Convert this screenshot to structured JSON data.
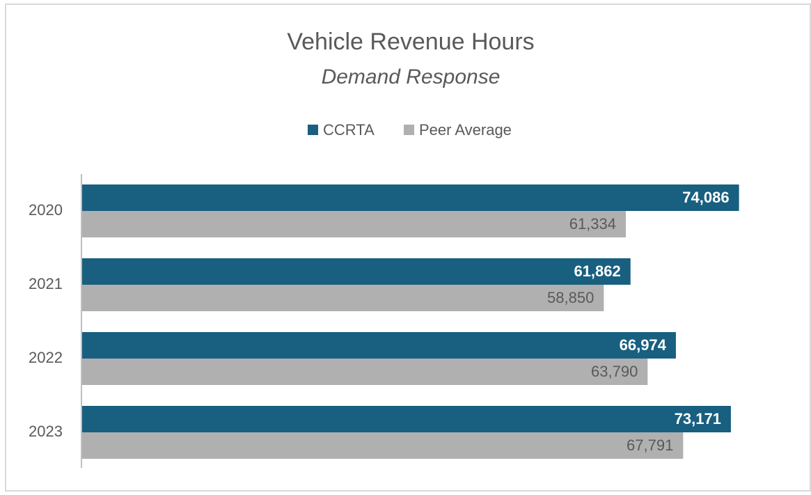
{
  "chart_data": {
    "type": "bar",
    "orientation": "horizontal",
    "title": "Vehicle Revenue Hours",
    "subtitle": "Demand Response",
    "categories": [
      "2020",
      "2021",
      "2022",
      "2023"
    ],
    "series": [
      {
        "name": "CCRTA",
        "color": "#185f80",
        "values": [
          74086,
          61862,
          66974,
          73171
        ],
        "value_labels": [
          "74,086",
          "61,862",
          "66,974",
          "73,171"
        ]
      },
      {
        "name": "Peer Average",
        "color": "#b0b0b0",
        "values": [
          61334,
          58850,
          63790,
          67791
        ],
        "value_labels": [
          "61,334",
          "58,850",
          "63,790",
          "67,791"
        ]
      }
    ],
    "xlim": [
      0,
      80000
    ],
    "legend": "top"
  }
}
